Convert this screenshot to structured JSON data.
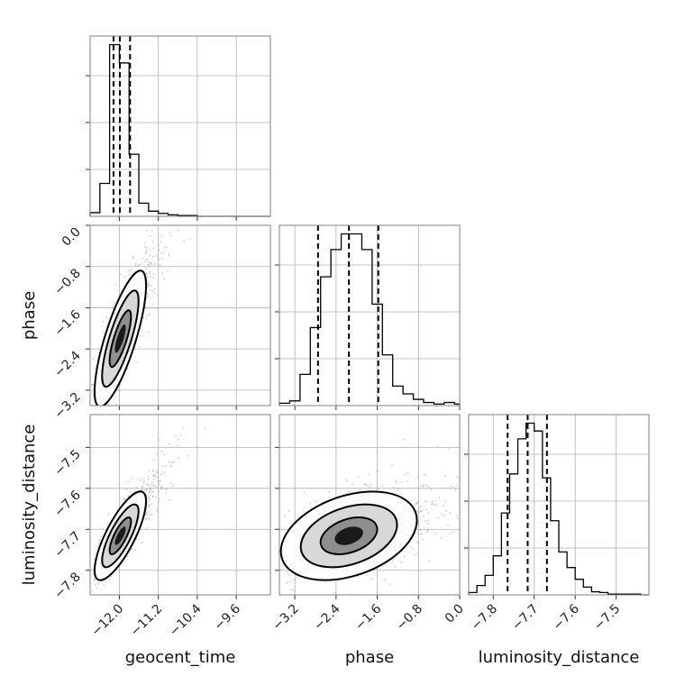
{
  "chart_data": {
    "type": "corner",
    "parameters": [
      "geocent_time",
      "phase",
      "luminosity_distance"
    ],
    "grid": true,
    "colors": {
      "line": "#000000",
      "scatter": "#9a9a9a",
      "grid": "#b0b0b0",
      "frame": "#808080"
    },
    "axes": {
      "geocent_time": {
        "label": "geocent_time",
        "range": [
          -12.6,
          -8.9
        ],
        "ticks": [
          -12.0,
          -11.2,
          -10.4,
          -9.6
        ],
        "tick_labels": [
          "−12.0",
          "−11.2",
          "−10.4",
          "−9.6"
        ]
      },
      "phase": {
        "label": "phase",
        "range": [
          -3.5,
          0.0
        ],
        "ticks": [
          -3.2,
          -2.4,
          -1.6,
          -0.8,
          0.0
        ],
        "tick_labels": [
          "−3.2",
          "−2.4",
          "−1.6",
          "−0.8",
          "0.0"
        ]
      },
      "luminosity_distance": {
        "label": "luminosity_distance",
        "range": [
          -7.86,
          -7.42
        ],
        "ticks": [
          -7.8,
          -7.7,
          -7.6,
          -7.5
        ],
        "tick_labels": [
          "−7.8",
          "−7.7",
          "−7.6",
          "−7.5"
        ]
      }
    },
    "histograms": [
      {
        "parameter": "geocent_time",
        "bin_edges": [
          -12.6,
          -12.4,
          -12.2,
          -12.0,
          -11.8,
          -11.6,
          -11.4,
          -11.2,
          -11.0,
          -10.8,
          -10.6,
          -10.4
        ],
        "counts": [
          5,
          45,
          235,
          210,
          85,
          18,
          7,
          4,
          2,
          1,
          1
        ],
        "quantiles": [
          -12.12,
          -11.99,
          -11.78
        ]
      },
      {
        "parameter": "phase",
        "bin_edges": [
          -3.5,
          -3.3,
          -3.1,
          -2.9,
          -2.7,
          -2.5,
          -2.3,
          -2.1,
          -1.9,
          -1.7,
          -1.5,
          -1.3,
          -1.1,
          -0.9,
          -0.7,
          -0.5,
          -0.3,
          -0.1,
          0.0
        ],
        "counts": [
          3,
          6,
          40,
          100,
          165,
          200,
          220,
          220,
          200,
          130,
          65,
          25,
          15,
          8,
          4,
          2,
          4,
          2
        ],
        "quantiles": [
          -2.75,
          -2.15,
          -1.58
        ]
      },
      {
        "parameter": "luminosity_distance",
        "bin_edges": [
          -7.86,
          -7.84,
          -7.82,
          -7.8,
          -7.78,
          -7.76,
          -7.74,
          -7.72,
          -7.7,
          -7.68,
          -7.66,
          -7.64,
          -7.62,
          -7.6,
          -7.58,
          -7.56,
          -7.54,
          -7.52,
          -7.5,
          -7.48,
          -7.46,
          -7.44
        ],
        "counts": [
          3,
          12,
          25,
          50,
          105,
          155,
          200,
          220,
          210,
          150,
          95,
          55,
          35,
          20,
          10,
          4,
          3,
          1,
          1,
          1,
          1
        ],
        "quantiles": [
          -7.765,
          -7.716,
          -7.669
        ]
      }
    ],
    "scatter_panels": [
      {
        "x": "geocent_time",
        "y": "phase",
        "mean": [
          -11.98,
          -2.2
        ],
        "sd": [
          0.22,
          0.55
        ],
        "corr": 0.78
      },
      {
        "x": "geocent_time",
        "y": "luminosity_distance",
        "mean": [
          -11.98,
          -7.716
        ],
        "sd": [
          0.22,
          0.045
        ],
        "corr": 0.78
      },
      {
        "x": "phase",
        "y": "luminosity_distance",
        "mean": [
          -2.15,
          -7.716
        ],
        "sd": [
          0.55,
          0.045
        ],
        "corr": 0.35
      }
    ]
  }
}
